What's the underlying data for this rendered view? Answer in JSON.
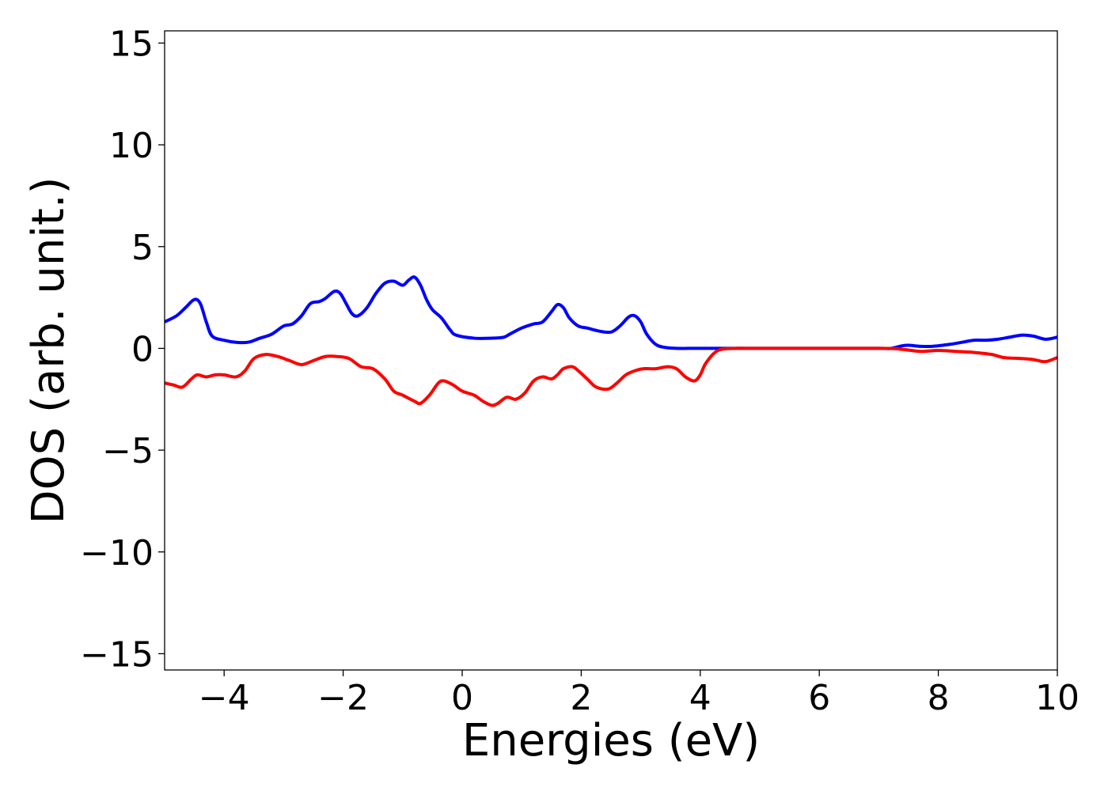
{
  "chart_data": {
    "type": "line",
    "xlabel": "Energies (eV)",
    "ylabel": "DOS (arb. unit.)",
    "xlim": [
      -5,
      10
    ],
    "ylim": [
      -15.8,
      15.6
    ],
    "xticks": [
      -4,
      -2,
      0,
      2,
      4,
      6,
      8,
      10
    ],
    "xtick_labels": [
      "−4",
      "−2",
      "0",
      "2",
      "4",
      "6",
      "8",
      "10"
    ],
    "yticks": [
      15,
      10,
      5,
      0,
      -5,
      -10,
      -15
    ],
    "ytick_labels": [
      "15",
      "10",
      "5",
      "0",
      "−5",
      "−10",
      "−15"
    ],
    "grid": false,
    "legend": "none",
    "series": [
      {
        "color": "#0000ff",
        "x": [
          -5.0,
          -4.8,
          -4.65,
          -4.5,
          -4.4,
          -4.3,
          -4.2,
          -4.0,
          -3.8,
          -3.6,
          -3.4,
          -3.2,
          -3.0,
          -2.85,
          -2.7,
          -2.55,
          -2.4,
          -2.3,
          -2.15,
          -2.05,
          -1.95,
          -1.85,
          -1.75,
          -1.6,
          -1.45,
          -1.3,
          -1.15,
          -1.0,
          -0.9,
          -0.8,
          -0.7,
          -0.6,
          -0.5,
          -0.35,
          -0.2,
          -0.1,
          0.2,
          0.5,
          0.7,
          0.8,
          1.0,
          1.2,
          1.35,
          1.5,
          1.6,
          1.7,
          1.8,
          1.95,
          2.1,
          2.3,
          2.5,
          2.65,
          2.8,
          2.9,
          3.0,
          3.1,
          3.25,
          3.4,
          3.6,
          3.8,
          4.0,
          4.5,
          5.0,
          6.0,
          7.0,
          7.2,
          7.45,
          7.7,
          7.9,
          8.2,
          8.4,
          8.6,
          8.8,
          9.0,
          9.2,
          9.4,
          9.6,
          9.8,
          10.0
        ],
        "y": [
          1.3,
          1.6,
          2.0,
          2.4,
          2.2,
          1.3,
          0.6,
          0.4,
          0.3,
          0.3,
          0.5,
          0.7,
          1.1,
          1.2,
          1.6,
          2.2,
          2.3,
          2.45,
          2.8,
          2.7,
          2.2,
          1.7,
          1.6,
          2.0,
          2.7,
          3.2,
          3.3,
          3.1,
          3.35,
          3.5,
          3.1,
          2.4,
          1.9,
          1.5,
          0.9,
          0.65,
          0.5,
          0.5,
          0.55,
          0.7,
          1.0,
          1.2,
          1.3,
          1.8,
          2.15,
          2.0,
          1.5,
          1.1,
          1.0,
          0.85,
          0.8,
          1.1,
          1.55,
          1.6,
          1.3,
          0.7,
          0.2,
          0.05,
          0.0,
          0.0,
          0.0,
          0.0,
          0.0,
          0.0,
          0.0,
          0.0,
          0.15,
          0.1,
          0.1,
          0.2,
          0.3,
          0.4,
          0.4,
          0.45,
          0.55,
          0.65,
          0.6,
          0.45,
          0.55
        ]
      },
      {
        "color": "#ff0000",
        "x": [
          -5.0,
          -4.85,
          -4.7,
          -4.55,
          -4.45,
          -4.3,
          -4.15,
          -4.0,
          -3.8,
          -3.65,
          -3.5,
          -3.3,
          -3.1,
          -2.9,
          -2.7,
          -2.5,
          -2.3,
          -2.1,
          -1.9,
          -1.7,
          -1.5,
          -1.3,
          -1.15,
          -1.0,
          -0.8,
          -0.7,
          -0.55,
          -0.4,
          -0.3,
          -0.15,
          0.0,
          0.2,
          0.35,
          0.5,
          0.6,
          0.75,
          0.9,
          1.05,
          1.2,
          1.35,
          1.5,
          1.6,
          1.7,
          1.85,
          1.95,
          2.1,
          2.25,
          2.45,
          2.6,
          2.75,
          2.9,
          3.05,
          3.25,
          3.45,
          3.6,
          3.75,
          3.9,
          4.0,
          4.1,
          4.3,
          4.6,
          5.0,
          7.0,
          7.4,
          7.7,
          8.0,
          8.3,
          8.6,
          8.9,
          9.1,
          9.4,
          9.6,
          9.8,
          10.0
        ],
        "y": [
          -1.7,
          -1.8,
          -1.9,
          -1.5,
          -1.3,
          -1.4,
          -1.3,
          -1.3,
          -1.4,
          -1.1,
          -0.5,
          -0.3,
          -0.4,
          -0.6,
          -0.8,
          -0.6,
          -0.4,
          -0.4,
          -0.5,
          -0.9,
          -1.0,
          -1.5,
          -2.1,
          -2.3,
          -2.6,
          -2.7,
          -2.3,
          -1.7,
          -1.6,
          -1.8,
          -2.1,
          -2.3,
          -2.6,
          -2.8,
          -2.7,
          -2.4,
          -2.5,
          -2.2,
          -1.6,
          -1.4,
          -1.5,
          -1.3,
          -1.0,
          -0.9,
          -1.1,
          -1.5,
          -1.9,
          -2.0,
          -1.7,
          -1.3,
          -1.1,
          -1.0,
          -1.0,
          -0.9,
          -1.0,
          -1.4,
          -1.6,
          -1.3,
          -0.7,
          -0.1,
          0.0,
          0.0,
          0.0,
          -0.05,
          -0.15,
          -0.1,
          -0.15,
          -0.2,
          -0.3,
          -0.45,
          -0.5,
          -0.55,
          -0.65,
          -0.45
        ]
      }
    ]
  }
}
